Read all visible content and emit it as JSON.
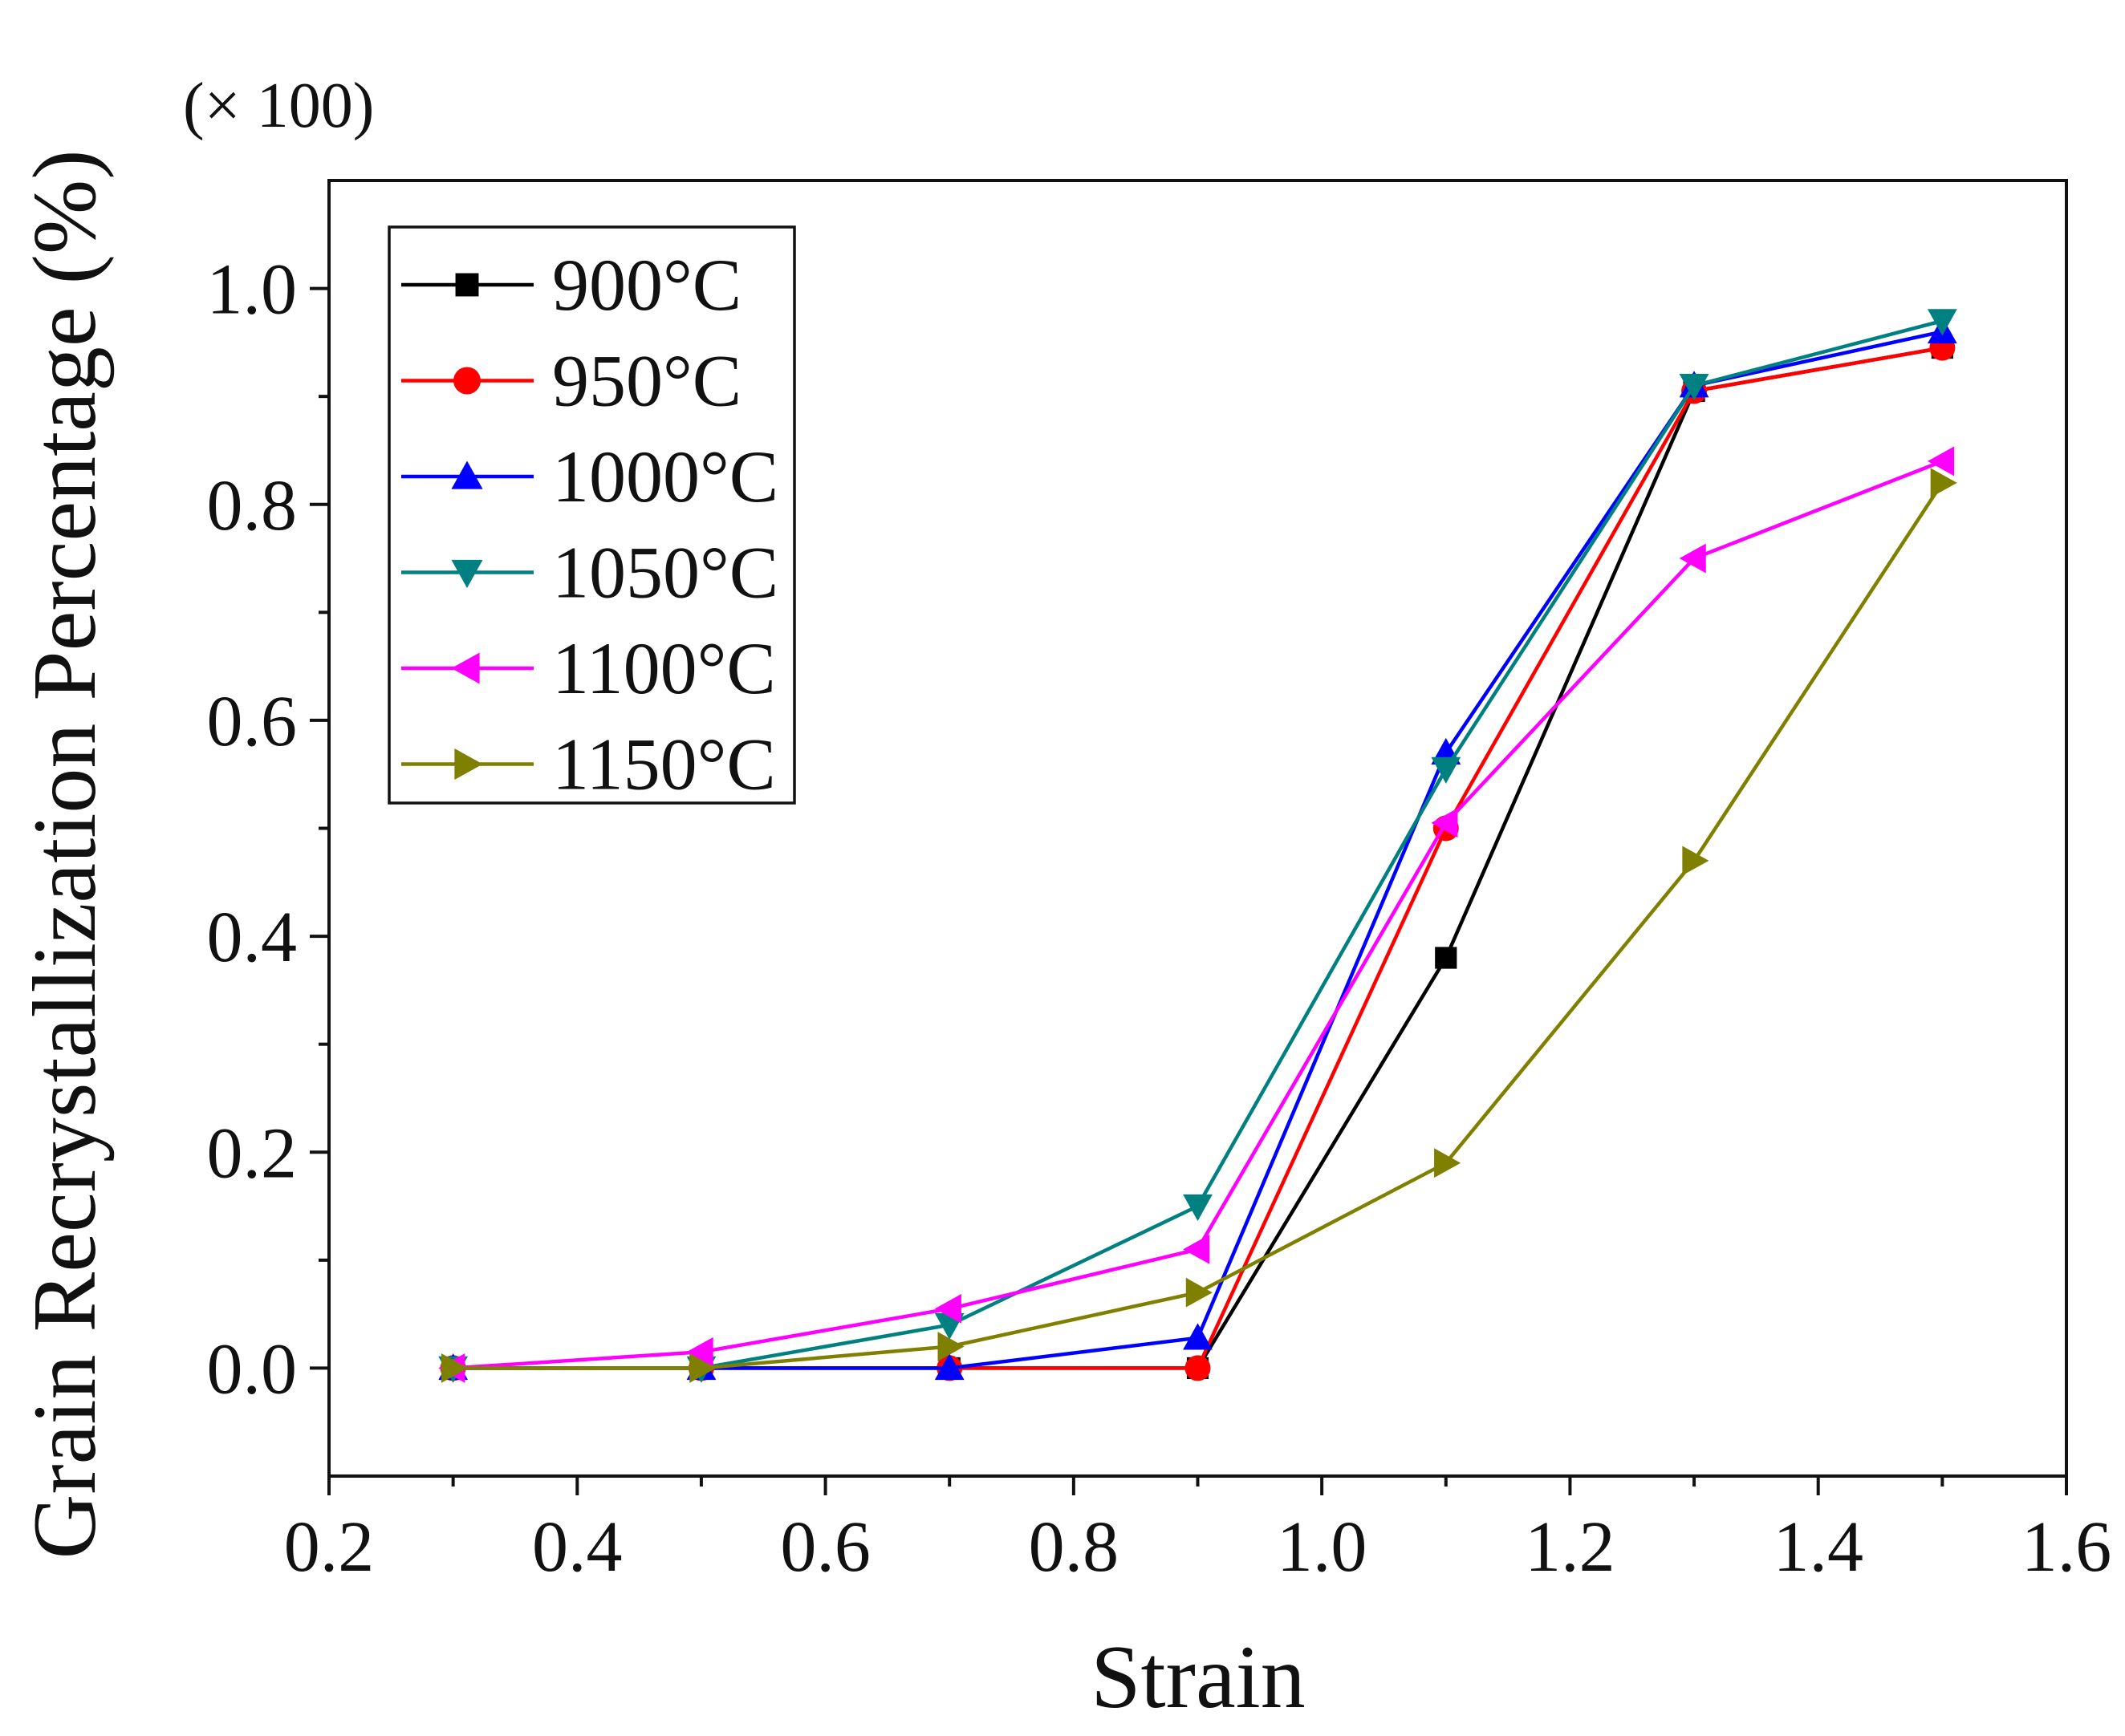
{
  "chart_data": {
    "type": "line",
    "title": "",
    "xlabel": "Strain",
    "ylabel": "Grain Recrystallization Percentage (%)",
    "y_scale_note": "(× 100)",
    "xlim": [
      0.2,
      1.6
    ],
    "ylim": [
      -0.1,
      1.1
    ],
    "x_ticks": [
      0.2,
      0.4,
      0.6,
      0.8,
      1.0,
      1.2,
      1.4,
      1.6
    ],
    "x_tick_labels": [
      "0.2",
      "0.4",
      "0.6",
      "0.8",
      "1.0",
      "1.2",
      "1.4",
      "1.6"
    ],
    "y_ticks": [
      0.0,
      0.2,
      0.4,
      0.6,
      0.8,
      1.0
    ],
    "y_tick_labels": [
      "0.0",
      "0.2",
      "0.4",
      "0.6",
      "0.8",
      "1.0"
    ],
    "grid": false,
    "legend_position": "top-left",
    "x": [
      0.3,
      0.5,
      0.7,
      0.9,
      1.1,
      1.3,
      1.5
    ],
    "series": [
      {
        "name": "900°C",
        "color": "#000000",
        "marker": "square",
        "values": [
          0.0,
          0.0,
          0.0,
          0.0,
          0.38,
          0.905,
          0.945
        ]
      },
      {
        "name": "950°C",
        "color": "#ff0000",
        "marker": "circle",
        "values": [
          0.0,
          0.0,
          0.0,
          0.0,
          0.5,
          0.905,
          0.945
        ]
      },
      {
        "name": "1000°C",
        "color": "#0000ff",
        "marker": "triangle-up",
        "values": [
          0.0,
          0.0,
          0.0,
          0.028,
          0.57,
          0.91,
          0.96
        ]
      },
      {
        "name": "1050°C",
        "color": "#008080",
        "marker": "triangle-down",
        "values": [
          0.0,
          0.0,
          0.04,
          0.15,
          0.555,
          0.91,
          0.97
        ]
      },
      {
        "name": "1100°C",
        "color": "#ff00ff",
        "marker": "triangle-left",
        "values": [
          0.0,
          0.015,
          0.055,
          0.11,
          0.505,
          0.75,
          0.84
        ]
      },
      {
        "name": "1150°C",
        "color": "#808000",
        "marker": "triangle-right",
        "values": [
          0.0,
          0.0,
          0.02,
          0.07,
          0.19,
          0.47,
          0.82
        ]
      }
    ]
  }
}
